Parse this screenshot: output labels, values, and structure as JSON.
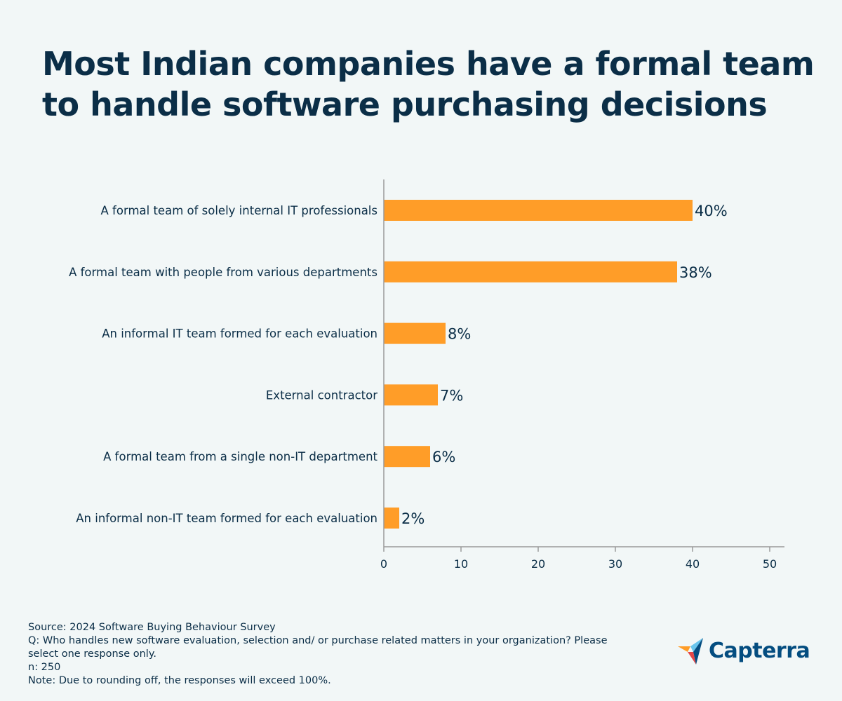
{
  "title": {
    "line1": "Most Indian companies have a formal team",
    "line2": "to handle software purchasing decisions"
  },
  "chart_data": {
    "type": "bar",
    "orientation": "horizontal",
    "categories": [
      "A formal team of solely internal IT professionals",
      "A formal team with people from various departments",
      "An informal IT team formed for each evaluation",
      "External contractor",
      "A formal team from a single non-IT department",
      "An informal non-IT team formed for each evaluation"
    ],
    "values": [
      40,
      38,
      8,
      7,
      6,
      2
    ],
    "value_labels": [
      "40%",
      "38%",
      "8%",
      "7%",
      "6%",
      "2%"
    ],
    "xlim": [
      0,
      50
    ],
    "xticks": [
      0,
      10,
      20,
      30,
      40,
      50
    ],
    "xlabel": "",
    "ylabel": "",
    "bar_color": "#ff9d28",
    "grid": false
  },
  "footer": {
    "source": "Source: 2024 Software Buying Behaviour Survey",
    "question_line1": "Q: Who handles new software evaluation, selection and/ or purchase related matters in your organization? Please",
    "question_line2": "select one response only.",
    "n": "n: 250",
    "note": "Note: Due to rounding off, the responses will exceed 100%."
  },
  "logo": {
    "text": "Capterra",
    "colors": [
      "#ff9d28",
      "#68c5ed",
      "#044d80",
      "#e54747"
    ]
  }
}
